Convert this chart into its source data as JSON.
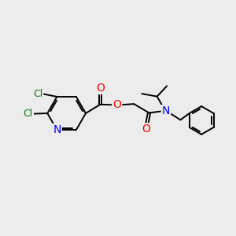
{
  "bg_color": "#ececec",
  "bond_color": "#000000",
  "bond_width": 1.4,
  "atom_colors": {
    "Cl": "#008000",
    "N": "#0000ff",
    "O": "#ff0000",
    "C": "#000000"
  },
  "font_size_atom": 10,
  "font_size_cl": 9
}
